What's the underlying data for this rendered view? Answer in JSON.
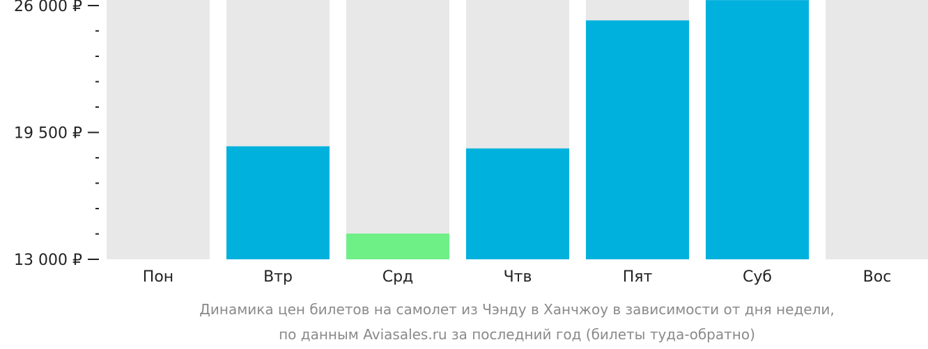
{
  "chart_data": {
    "type": "bar",
    "categories": [
      "Пон",
      "Втр",
      "Срд",
      "Чтв",
      "Пят",
      "Суб",
      "Вос"
    ],
    "values": [
      null,
      18790,
      14320,
      18680,
      25240,
      26280,
      null
    ],
    "highlight_index": 2,
    "ylim": [
      13000,
      26000
    ],
    "y_ticks": [
      {
        "value": 13000,
        "label": "13 000 ₽"
      },
      {
        "value": 19500,
        "label": "19 500 ₽"
      },
      {
        "value": 26000,
        "label": "26 000 ₽"
      }
    ],
    "minor_ticks_between_labels": 4,
    "caption_lines": [
      "Динамика цен билетов на самолет из Чэнду в Ханчжоу в зависимости от дня недели,",
      "по данным Aviasales.ru за последний год (билеты туда-обратно)"
    ],
    "colors": {
      "bar": "#00b1dd",
      "highlight": "#6ef087",
      "background_column": "#e8e8e8",
      "axis_text": "#222222",
      "caption_text": "#8a8a8a"
    }
  }
}
